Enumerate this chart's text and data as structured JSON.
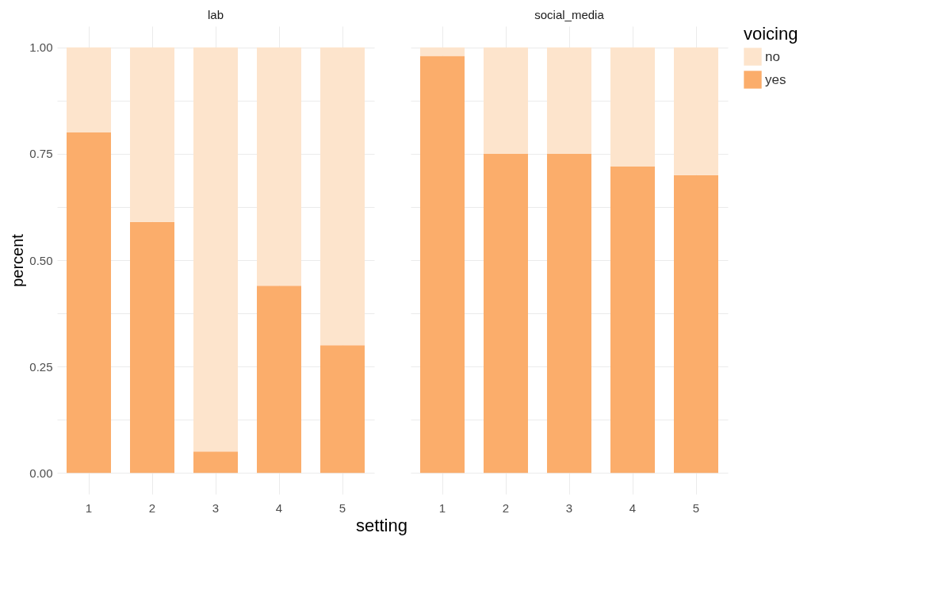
{
  "chart_data": [
    {
      "type": "bar",
      "title": "lab",
      "xlabel": "setting",
      "ylabel": "percent",
      "categories": [
        "1",
        "2",
        "3",
        "4",
        "5"
      ],
      "stacked": true,
      "ylim": [
        -0.05,
        1.05
      ],
      "yticks": [
        {
          "value": 0,
          "label": "0.00"
        },
        {
          "value": 0.125,
          "label": null
        },
        {
          "value": 0.25,
          "label": "0.25"
        },
        {
          "value": 0.375,
          "label": null
        },
        {
          "value": 0.5,
          "label": "0.50"
        },
        {
          "value": 0.625,
          "label": null
        },
        {
          "value": 0.75,
          "label": "0.75"
        },
        {
          "value": 0.875,
          "label": null
        },
        {
          "value": 1,
          "label": "1.00"
        }
      ],
      "grid": true,
      "legend": false,
      "series": [
        {
          "color": "#fbad6b",
          "values": [
            0.8,
            0.59,
            0.05,
            0.44,
            0.3
          ]
        },
        {
          "color": "#fde4cc",
          "values": [
            0.2,
            0.41,
            0.95,
            0.56,
            0.7
          ]
        }
      ]
    },
    {
      "type": "bar",
      "title": "social_media",
      "legend_title": "voicing",
      "categories": [
        "1",
        "2",
        "3",
        "4",
        "5"
      ],
      "stacked": true,
      "ylim": [
        -0.05,
        1.05
      ],
      "yticks": [
        {
          "value": 0,
          "label": null
        },
        {
          "value": 0.125,
          "label": null
        },
        {
          "value": 0.25,
          "label": null
        },
        {
          "value": 0.375,
          "label": null
        },
        {
          "value": 0.5,
          "label": null
        },
        {
          "value": 0.625,
          "label": null
        },
        {
          "value": 0.75,
          "label": null
        },
        {
          "value": 0.875,
          "label": null
        },
        {
          "value": 1,
          "label": null
        }
      ],
      "grid": true,
      "legend": "right",
      "tick_labels": "x",
      "series": [
        {
          "name": "yes",
          "color": "#fbad6b",
          "values": [
            0.98,
            0.75,
            0.75,
            0.72,
            0.7
          ]
        },
        {
          "name": "no",
          "color": "#fde4cc",
          "values": [
            0.02,
            0.25,
            0.25,
            0.28,
            0.3
          ]
        }
      ]
    }
  ]
}
